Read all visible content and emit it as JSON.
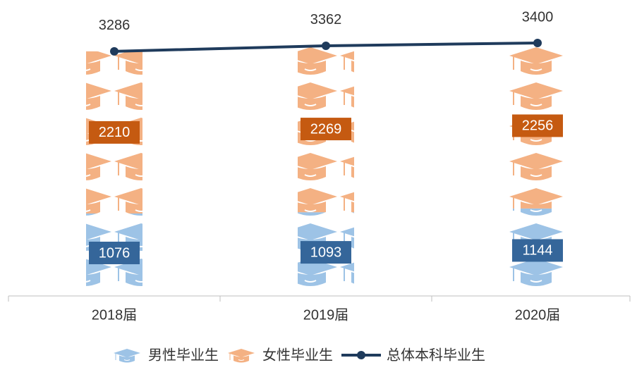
{
  "chart_data": {
    "type": "pictograph_stacked_bar_line",
    "categories": [
      "2018届",
      "2019届",
      "2020届"
    ],
    "series": [
      {
        "name": "男性毕业生",
        "color": "#9dc3e6",
        "label_color": "#35669a",
        "values": [
          1076,
          1093,
          1144
        ]
      },
      {
        "name": "女性毕业生",
        "color": "#f4b183",
        "label_color": "#c55a11",
        "values": [
          2210,
          2269,
          2256
        ]
      },
      {
        "name": "总体本科毕业生",
        "type": "line",
        "color": "#1f3b5c",
        "values": [
          3286,
          3362,
          3400
        ]
      }
    ]
  }
}
